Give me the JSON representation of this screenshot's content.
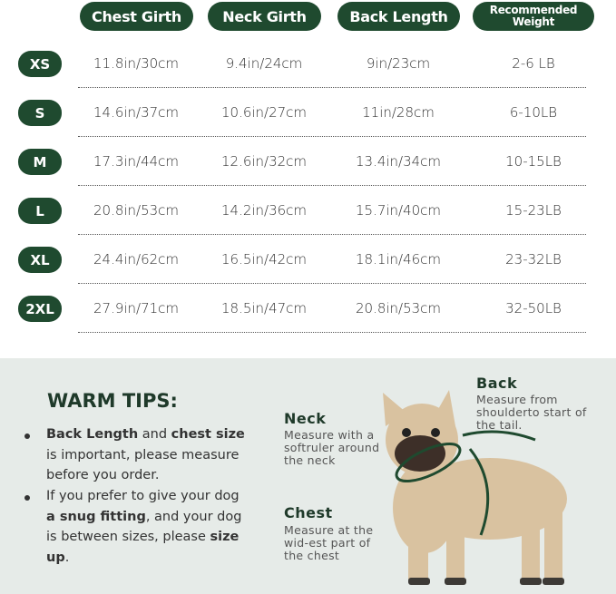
{
  "headers": {
    "chest": "Chest Girth",
    "neck": "Neck Girth",
    "back": "Back Length",
    "weight": "Recommended Weight"
  },
  "rows": [
    {
      "size": "XS",
      "chest": "11.8in/30cm",
      "neck": "9.4in/24cm",
      "back": "9in/23cm",
      "weight": "2-6 LB"
    },
    {
      "size": "S",
      "chest": "14.6in/37cm",
      "neck": "10.6in/27cm",
      "back": "11in/28cm",
      "weight": "6-10LB"
    },
    {
      "size": "M",
      "chest": "17.3in/44cm",
      "neck": "12.6in/32cm",
      "back": "13.4in/34cm",
      "weight": "10-15LB"
    },
    {
      "size": "L",
      "chest": "20.8in/53cm",
      "neck": "14.2in/36cm",
      "back": "15.7in/40cm",
      "weight": "15-23LB"
    },
    {
      "size": "XL",
      "chest": "24.4in/62cm",
      "neck": "16.5in/42cm",
      "back": "18.1in/46cm",
      "weight": "23-32LB"
    },
    {
      "size": "2XL",
      "chest": "27.9in/71cm",
      "neck": "18.5in/47cm",
      "back": "20.8in/53cm",
      "weight": "32-50LB"
    }
  ],
  "tips": {
    "title": "WARM TIPS:",
    "tip1": {
      "b1": "Back Length",
      "t1": " and ",
      "b2": "chest size",
      "t2": " is important, please measure before you order."
    },
    "tip2": {
      "t1": "If you prefer to give your dog ",
      "b1": "a snug fitting",
      "t2": ", and your dog is between sizes, please ",
      "b2": "size up",
      "t3": "."
    }
  },
  "diagram": {
    "neck": {
      "title": "Neck",
      "text": "Measure with a softruler around the neck"
    },
    "chest": {
      "title": "Chest",
      "text": "Measure at the wid-est part of the chest"
    },
    "back": {
      "title": "Back",
      "text": "Measure from shoulderto start of the tail."
    }
  },
  "colors": {
    "accent": "#1f4a2f",
    "bottom_bg": "#e6ebe8"
  }
}
